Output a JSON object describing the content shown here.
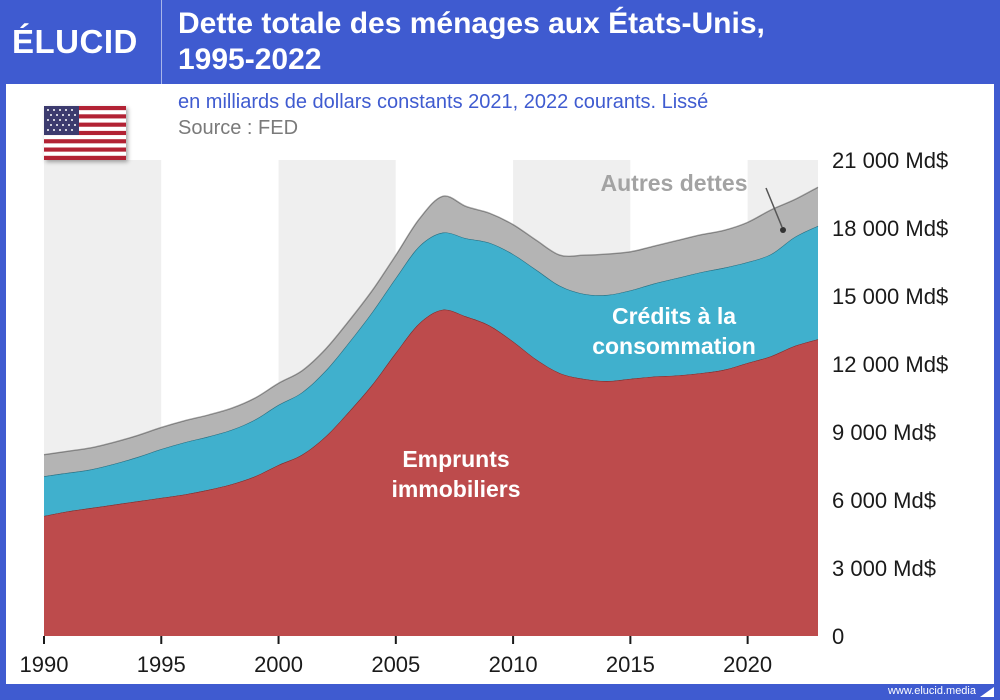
{
  "header": {
    "logo_text": "ÉLUCID",
    "title_line1": "Dette totale des ménages aux États-Unis,",
    "title_line2": "1995-2022"
  },
  "subtitle": "en milliards de dollars constants 2021, 2022 courants. Lissé",
  "source": "Source : FED",
  "flag_icon": "us-flag-icon",
  "footer": {
    "url": "www.elucid.media"
  },
  "colors": {
    "brand_blue": "#3f5bd0",
    "mortgage": "#bd4b4c",
    "consumer_credit": "#40b0cd",
    "other_debt": "#b4b4b4",
    "band_light": "#efefef"
  },
  "chart_data": {
    "type": "area",
    "stacked": true,
    "x": [
      1990,
      1991,
      1992,
      1993,
      1994,
      1995,
      1996,
      1997,
      1998,
      1999,
      2000,
      2001,
      2002,
      2003,
      2004,
      2005,
      2006,
      2007,
      2008,
      2009,
      2010,
      2011,
      2012,
      2013,
      2014,
      2015,
      2016,
      2017,
      2018,
      2019,
      2020,
      2021,
      2022,
      2023
    ],
    "series": [
      {
        "name": "Emprunts immobiliers",
        "labels": [
          "Emprunts",
          "immobiliers"
        ],
        "color": "#bd4b4c",
        "values": [
          5300,
          5500,
          5650,
          5800,
          5950,
          6100,
          6250,
          6450,
          6700,
          7050,
          7550,
          8000,
          8800,
          9900,
          11100,
          12500,
          13800,
          14400,
          14100,
          13700,
          13000,
          12200,
          11600,
          11350,
          11250,
          11350,
          11450,
          11500,
          11600,
          11750,
          12050,
          12350,
          12800,
          13100
        ]
      },
      {
        "name": "Crédits à la consommation",
        "labels": [
          "Crédits à la",
          "consommation"
        ],
        "color": "#40b0cd",
        "values": [
          1750,
          1700,
          1700,
          1800,
          1950,
          2150,
          2300,
          2350,
          2400,
          2500,
          2650,
          2750,
          2900,
          3050,
          3200,
          3300,
          3400,
          3400,
          3450,
          3650,
          3850,
          3950,
          3850,
          3750,
          3800,
          3900,
          4100,
          4300,
          4450,
          4500,
          4450,
          4500,
          4800,
          5000
        ]
      },
      {
        "name": "Autres dettes",
        "labels": [
          "Autres dettes"
        ],
        "color": "#b4b4b4",
        "values": [
          950,
          950,
          950,
          950,
          950,
          950,
          950,
          950,
          950,
          950,
          950,
          950,
          950,
          950,
          950,
          1000,
          1200,
          1600,
          1400,
          1300,
          1300,
          1300,
          1350,
          1700,
          1800,
          1700,
          1650,
          1650,
          1650,
          1650,
          1750,
          1950,
          1650,
          1700
        ]
      }
    ],
    "xlim": [
      1990,
      2023
    ],
    "ylim": [
      0,
      21000
    ],
    "x_ticks": [
      1990,
      1995,
      2000,
      2005,
      2010,
      2015,
      2020
    ],
    "y_ticks": [
      0,
      3000,
      6000,
      9000,
      12000,
      15000,
      18000,
      21000
    ],
    "y_tick_labels": [
      "0",
      "3 000 Md$",
      "6 000 Md$",
      "9 000 Md$",
      "12 000 Md$",
      "15 000 Md$",
      "18 000 Md$",
      "21 000 Md$"
    ],
    "background_bands": "alternating 5-year columns"
  }
}
